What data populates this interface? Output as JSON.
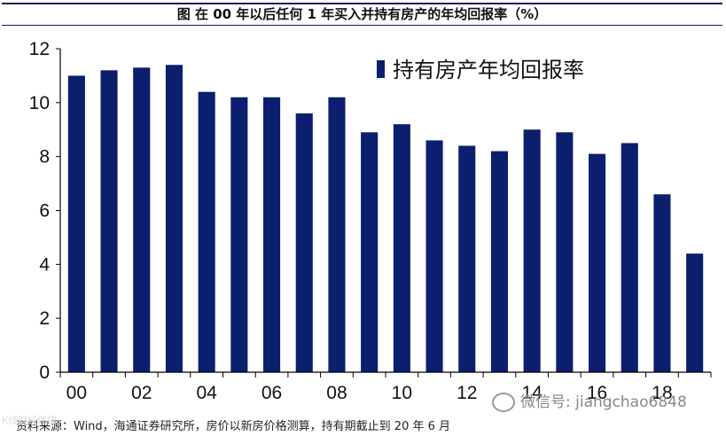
{
  "title": "图  在 00 年以后任何 1 年买入并持有房产的年均回报率（%）",
  "source": "资料来源：Wind，海通证券研究所，房价以新房价格测算，持有期截止到 20 年 6 月",
  "watermark_right": "微信号: jiangchao6848",
  "watermark_left": "K线财经传媒",
  "bar_color": "#0c1e6e",
  "chart_data": {
    "type": "bar",
    "categories": [
      "00",
      "01",
      "02",
      "03",
      "04",
      "05",
      "06",
      "07",
      "08",
      "09",
      "10",
      "11",
      "12",
      "13",
      "14",
      "15",
      "16",
      "17",
      "18",
      "19"
    ],
    "x_tick_labels": [
      "00",
      "02",
      "04",
      "06",
      "08",
      "10",
      "12",
      "14",
      "16",
      "18"
    ],
    "series": [
      {
        "name": "持有房产年均回报率",
        "values": [
          11.0,
          11.2,
          11.3,
          11.4,
          10.4,
          10.2,
          10.2,
          9.6,
          10.2,
          8.9,
          9.2,
          8.6,
          8.4,
          8.2,
          9.0,
          8.9,
          8.1,
          8.5,
          6.6,
          4.4
        ]
      }
    ],
    "ylim": [
      0,
      12
    ],
    "yticks": [
      0,
      2,
      4,
      6,
      8,
      10,
      12
    ],
    "xlabel": "",
    "ylabel": "",
    "legend_position": "top-right",
    "grid": false
  }
}
